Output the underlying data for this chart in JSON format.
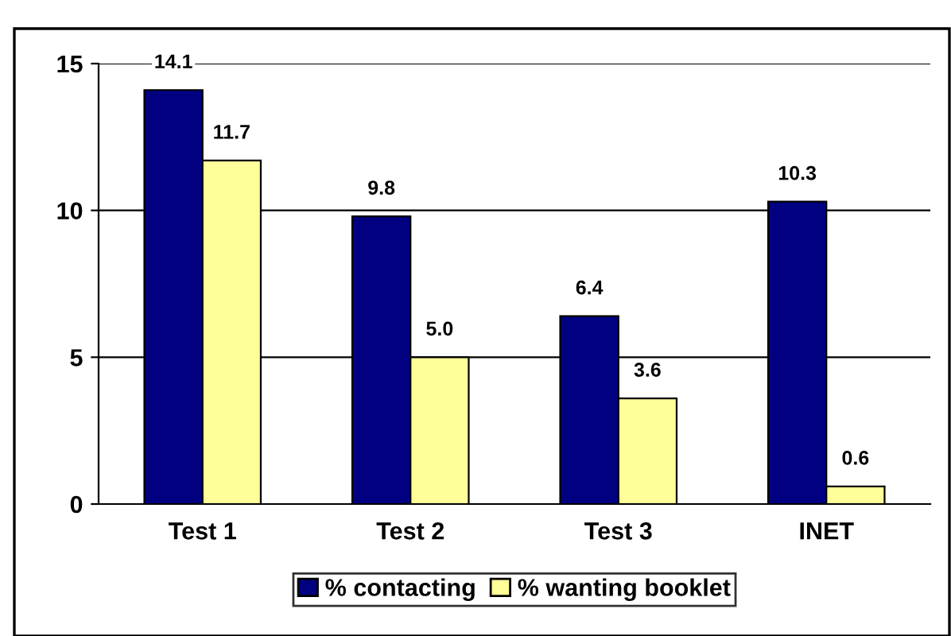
{
  "chart_data": {
    "type": "bar",
    "categories": [
      "Test 1",
      "Test 2",
      "Test 3",
      "INET"
    ],
    "series": [
      {
        "name": "% contacting",
        "color": "#000080",
        "values": [
          14.1,
          9.8,
          6.4,
          10.3
        ]
      },
      {
        "name": "% wanting booklet",
        "color": "#ffff99",
        "values": [
          11.7,
          5.0,
          3.6,
          0.6
        ]
      }
    ],
    "value_labels": [
      [
        "14.1",
        "9.8",
        "6.4",
        "10.3"
      ],
      [
        "11.7",
        "5.0",
        "3.6",
        "0.6"
      ]
    ],
    "ylim": [
      0,
      15
    ],
    "yticks": [
      0,
      5,
      10,
      15
    ],
    "grid": "y",
    "legend": "bottom"
  }
}
